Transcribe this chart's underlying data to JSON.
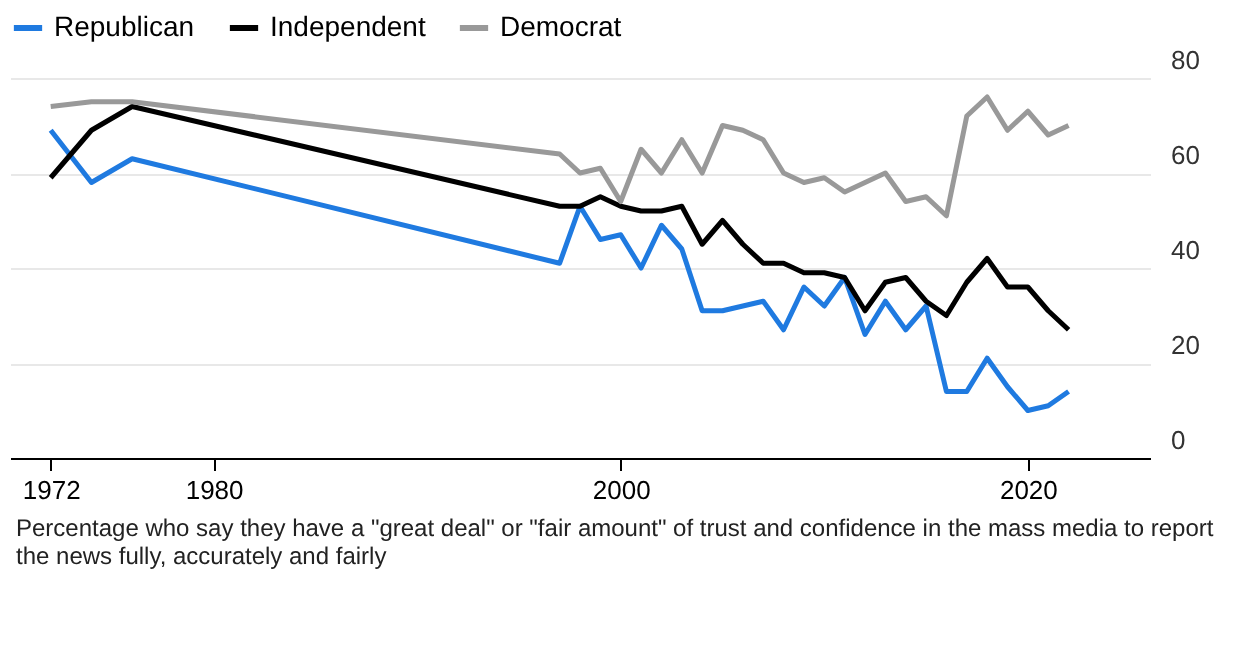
{
  "chart_data": {
    "type": "line",
    "x": [
      1972,
      1974,
      1976,
      1997,
      1998,
      1999,
      2000,
      2001,
      2002,
      2003,
      2004,
      2005,
      2006,
      2007,
      2008,
      2009,
      2010,
      2011,
      2012,
      2013,
      2014,
      2015,
      2016,
      2017,
      2018,
      2019,
      2020,
      2021,
      2022
    ],
    "series": [
      {
        "name": "Republican",
        "color": "#1f7ae0",
        "values": [
          69,
          58,
          63,
          41,
          53,
          46,
          47,
          40,
          49,
          44,
          31,
          31,
          32,
          33,
          27,
          36,
          32,
          38,
          26,
          33,
          27,
          32,
          14,
          14,
          21,
          15,
          10,
          11,
          14
        ]
      },
      {
        "name": "Independent",
        "color": "#000000",
        "values": [
          59,
          69,
          74,
          53,
          53,
          55,
          53,
          52,
          52,
          53,
          45,
          50,
          45,
          41,
          41,
          39,
          39,
          38,
          31,
          37,
          38,
          33,
          30,
          37,
          42,
          36,
          36,
          31,
          27
        ]
      },
      {
        "name": "Democrat",
        "color": "#999999",
        "values": [
          74,
          75,
          75,
          64,
          60,
          61,
          54,
          65,
          60,
          67,
          60,
          70,
          69,
          67,
          60,
          58,
          59,
          56,
          58,
          60,
          54,
          55,
          51,
          72,
          76,
          69,
          73,
          68,
          70
        ]
      }
    ],
    "xlim": [
      1970,
      2026
    ],
    "xticks": [
      1972,
      1980,
      2000,
      2020
    ],
    "ylim": [
      0,
      80
    ],
    "yticks": [
      0,
      20,
      40,
      60,
      80
    ],
    "grid": "y",
    "legend": "top left",
    "marker": "none",
    "line_style": "solid",
    "annotations": [
      "Percentage who say they have a \"great deal\" or \"fair amount\" of trust and confidence in the mass media to report the news fully, accurately and fairly"
    ]
  }
}
